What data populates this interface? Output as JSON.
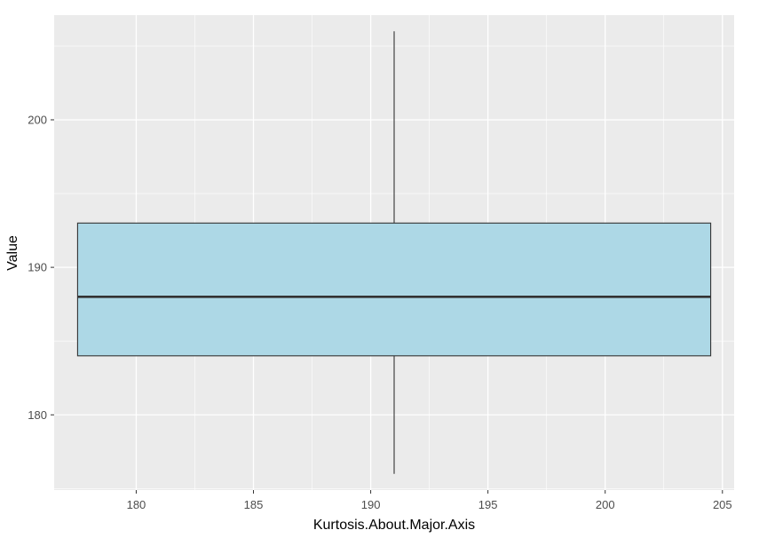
{
  "chart_data": {
    "type": "boxplot",
    "xlabel": "Kurtosis.About.Major.Axis",
    "ylabel": "Value",
    "xlim": [
      176.5,
      205.5
    ],
    "ylim": [
      174.9,
      207.1
    ],
    "x_ticks": [
      180,
      185,
      190,
      195,
      200,
      205
    ],
    "y_ticks": [
      180,
      190,
      200
    ],
    "box": {
      "x_center": 191,
      "x_extent": [
        177.5,
        204.5
      ],
      "whisker_low": 176,
      "q1": 184,
      "median": 188,
      "q3": 193,
      "whisker_high": 206
    },
    "grid": true,
    "colors": {
      "panel": "#ebebeb",
      "grid": "#ffffff",
      "box_fill": "#add8e6",
      "box_line": "#333333",
      "tick_text": "#4d4d4d"
    }
  }
}
